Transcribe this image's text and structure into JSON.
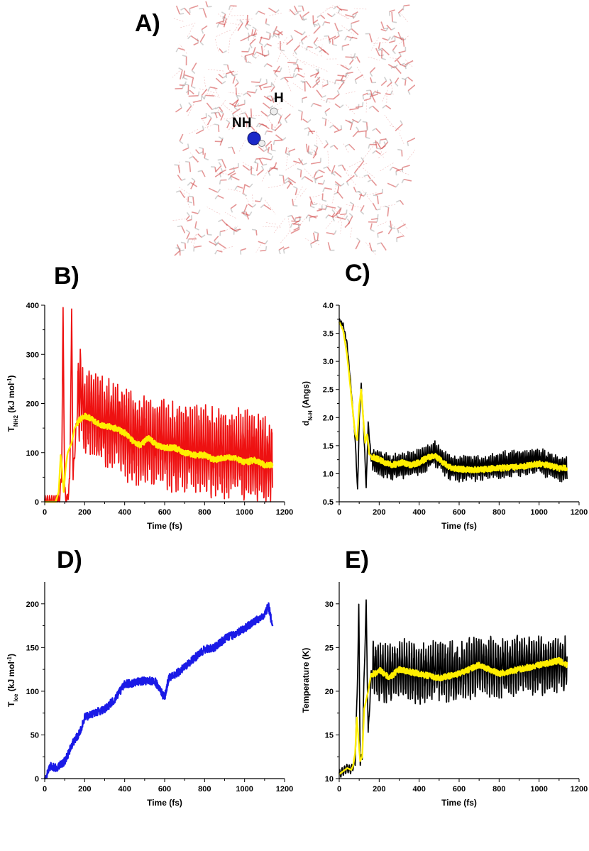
{
  "panel_labels": {
    "a": "A)",
    "b": "B)",
    "c": "C)",
    "d": "D)",
    "e": "E)"
  },
  "snapshot": {
    "label_nh": "NH",
    "label_h": "H",
    "colors": {
      "water_o": "#d04040",
      "water_h": "#b0b0b0",
      "nitrogen": "#1a28c8",
      "hydrogen": "#e8e8e8"
    }
  },
  "chart_data": [
    {
      "id": "B",
      "type": "line",
      "xlabel": "Time (fs)",
      "ylabel_main": "T",
      "ylabel_sub": "NH2",
      "ylabel_unit": " (kJ mol",
      "ylabel_sup": "-1",
      "ylabel_close": ")",
      "xlim": [
        0,
        1200
      ],
      "ylim": [
        0,
        400
      ],
      "xticks": [
        "0",
        "200",
        "400",
        "600",
        "800",
        "1000",
        "1200"
      ],
      "yticks": [
        "0",
        "100",
        "200",
        "300",
        "400"
      ],
      "xtick_values": [
        0,
        200,
        400,
        600,
        800,
        1000,
        1200
      ],
      "ytick_values": [
        0,
        100,
        200,
        300,
        400
      ],
      "series": [
        {
          "name": "raw",
          "color": "#ee1111",
          "kind": "raw",
          "key_x": [
            0,
            60,
            75,
            85,
            92,
            100,
            112,
            125,
            135,
            142,
            150,
            165,
            180,
            200,
            230,
            260,
            300,
            350,
            400,
            450,
            500,
            550,
            600,
            650,
            700,
            750,
            800,
            850,
            900,
            950,
            1000,
            1050,
            1100,
            1140
          ],
          "key_y": [
            0,
            0,
            5,
            60,
            390,
            20,
            0,
            40,
            380,
            50,
            100,
            200,
            230,
            170,
            190,
            175,
            160,
            160,
            140,
            130,
            125,
            120,
            120,
            115,
            110,
            110,
            105,
            100,
            100,
            100,
            95,
            95,
            85,
            85
          ],
          "amp": 85,
          "period": 11
        },
        {
          "name": "average",
          "color": "#ffee00",
          "kind": "smooth",
          "key_x": [
            0,
            55,
            70,
            80,
            88,
            95,
            105,
            115,
            125,
            135,
            150,
            170,
            200,
            230,
            260,
            300,
            350,
            400,
            450,
            480,
            520,
            560,
            600,
            650,
            700,
            750,
            800,
            850,
            900,
            950,
            1000,
            1050,
            1100,
            1140
          ],
          "key_y": [
            0,
            0,
            20,
            95,
            60,
            20,
            70,
            100,
            110,
            120,
            150,
            165,
            175,
            170,
            160,
            155,
            150,
            140,
            120,
            115,
            130,
            115,
            110,
            110,
            100,
            95,
            95,
            85,
            90,
            90,
            80,
            85,
            75,
            75
          ]
        }
      ]
    },
    {
      "id": "C",
      "type": "line",
      "xlabel": "Time (fs)",
      "ylabel_main": "d",
      "ylabel_sub": "N-H",
      "ylabel_unit": " (Angs)",
      "ylabel_sup": "",
      "ylabel_close": "",
      "xlim": [
        0,
        1200
      ],
      "ylim": [
        0.5,
        4.0
      ],
      "xticks": [
        "0",
        "200",
        "400",
        "600",
        "800",
        "1000",
        "1200"
      ],
      "yticks": [
        "0.5",
        "1.0",
        "1.5",
        "2.0",
        "2.5",
        "3.0",
        "3.5",
        "4.0"
      ],
      "xtick_values": [
        0,
        200,
        400,
        600,
        800,
        1000,
        1200
      ],
      "ytick_values": [
        0.5,
        1.0,
        1.5,
        2.0,
        2.5,
        3.0,
        3.5,
        4.0
      ],
      "series": [
        {
          "name": "raw",
          "color": "#000000",
          "kind": "raw",
          "key_x": [
            0,
            20,
            40,
            60,
            80,
            92,
            100,
            110,
            120,
            135,
            145,
            160,
            200,
            260,
            320,
            400,
            450,
            480,
            520,
            560,
            600,
            700,
            800,
            900,
            1000,
            1050,
            1100,
            1140
          ],
          "key_y": [
            3.73,
            3.65,
            3.3,
            2.5,
            1.6,
            0.7,
            1.9,
            2.58,
            2.0,
            0.75,
            1.9,
            1.25,
            1.2,
            1.1,
            1.15,
            1.2,
            1.3,
            1.35,
            1.2,
            1.1,
            1.1,
            1.1,
            1.15,
            1.2,
            1.22,
            1.15,
            1.1,
            1.1
          ],
          "amp": 0.22,
          "period": 9
        },
        {
          "name": "average",
          "color": "#ffee00",
          "kind": "smooth",
          "key_x": [
            0,
            20,
            40,
            60,
            80,
            90,
            100,
            110,
            120,
            130,
            140,
            150,
            165,
            200,
            260,
            320,
            360,
            400,
            450,
            480,
            520,
            560,
            600,
            700,
            800,
            900,
            1000,
            1050,
            1100,
            1140
          ],
          "key_y": [
            3.7,
            3.55,
            3.1,
            2.4,
            1.7,
            1.6,
            2.2,
            2.5,
            2.0,
            1.55,
            1.7,
            1.35,
            1.3,
            1.25,
            1.15,
            1.2,
            1.15,
            1.2,
            1.3,
            1.32,
            1.2,
            1.1,
            1.08,
            1.07,
            1.1,
            1.12,
            1.18,
            1.15,
            1.1,
            1.1
          ]
        }
      ]
    },
    {
      "id": "D",
      "type": "line",
      "xlabel": "Time (fs)",
      "ylabel_main": "T",
      "ylabel_sub": "Ice",
      "ylabel_unit": " (kJ mol",
      "ylabel_sup": "-1",
      "ylabel_close": ")",
      "xlim": [
        0,
        1200
      ],
      "ylim": [
        0,
        225
      ],
      "xticks": [
        "0",
        "200",
        "400",
        "600",
        "800",
        "1000",
        "1200"
      ],
      "yticks": [
        "0",
        "50",
        "100",
        "150",
        "200"
      ],
      "xtick_values": [
        0,
        200,
        400,
        600,
        800,
        1000,
        1200
      ],
      "ytick_values": [
        0,
        50,
        100,
        150,
        200
      ],
      "series": [
        {
          "name": "ice",
          "color": "#1a1ae6",
          "kind": "noisy",
          "key_x": [
            0,
            30,
            60,
            100,
            140,
            180,
            200,
            250,
            300,
            350,
            400,
            450,
            500,
            550,
            600,
            620,
            650,
            700,
            750,
            800,
            850,
            900,
            950,
            1000,
            1050,
            1100,
            1120,
            1140
          ],
          "key_y": [
            0,
            14,
            12,
            20,
            40,
            55,
            70,
            75,
            80,
            90,
            108,
            110,
            112,
            112,
            92,
            115,
            118,
            128,
            138,
            148,
            150,
            160,
            165,
            172,
            180,
            188,
            198,
            172
          ],
          "amp": 4.5
        }
      ]
    },
    {
      "id": "E",
      "type": "line",
      "xlabel": "Time (fs)",
      "ylabel_main": "Temperature (K)",
      "ylabel_sub": "",
      "ylabel_unit": "",
      "ylabel_sup": "",
      "ylabel_close": "",
      "xlim": [
        0,
        1200
      ],
      "ylim": [
        10,
        32.5
      ],
      "xticks": [
        "0",
        "200",
        "400",
        "600",
        "800",
        "1000",
        "1200"
      ],
      "yticks": [
        "10",
        "15",
        "20",
        "25",
        "30"
      ],
      "xtick_values": [
        0,
        200,
        400,
        600,
        800,
        1000,
        1200
      ],
      "ytick_values": [
        10,
        15,
        20,
        25,
        30
      ],
      "series": [
        {
          "name": "raw",
          "color": "#000000",
          "kind": "raw",
          "key_x": [
            0,
            40,
            60,
            80,
            90,
            98,
            105,
            115,
            125,
            135,
            145,
            160,
            180,
            200,
            250,
            300,
            400,
            500,
            600,
            700,
            800,
            900,
            1000,
            1100,
            1140
          ],
          "key_y": [
            10.5,
            11.2,
            11,
            12,
            20,
            29.5,
            12,
            12.5,
            22,
            30,
            15,
            22,
            22.5,
            22,
            22,
            22.5,
            22,
            22.5,
            22,
            23,
            22.5,
            23,
            23,
            23,
            23
          ],
          "amp": 3.2,
          "period": 12
        },
        {
          "name": "average",
          "color": "#ffee00",
          "kind": "smooth",
          "key_x": [
            0,
            40,
            60,
            70,
            80,
            88,
            95,
            105,
            115,
            125,
            135,
            145,
            160,
            180,
            200,
            250,
            300,
            400,
            500,
            600,
            700,
            800,
            900,
            1000,
            1100,
            1140
          ],
          "key_y": [
            10.5,
            11.2,
            11,
            11.5,
            13,
            17,
            15,
            12,
            12.5,
            18,
            19,
            20,
            22,
            22,
            22.5,
            21.5,
            22.5,
            22,
            21.5,
            22,
            23,
            22,
            22.5,
            23,
            23.5,
            23
          ]
        }
      ]
    }
  ]
}
